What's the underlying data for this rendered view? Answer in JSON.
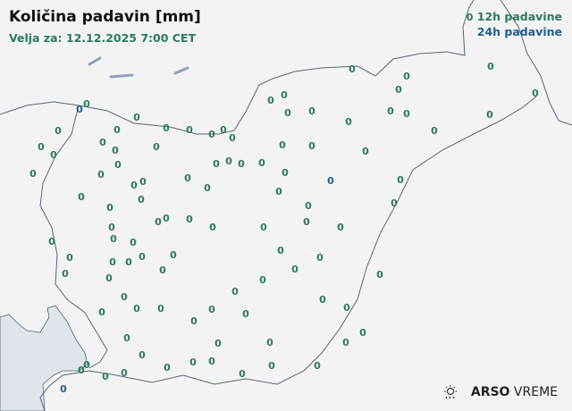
{
  "header": {
    "title": "Količina padavin [mm]",
    "valid_for": "Velja za: 12.12.2025 7:00 CET"
  },
  "legend": {
    "sample_value": "0",
    "items": [
      {
        "label": "12h padavine",
        "color": "#2b7a5a"
      },
      {
        "label": "24h padavine",
        "color": "#1f5f8f"
      }
    ]
  },
  "logo": {
    "brand": "ARSO",
    "product": "VREME",
    "icon": "sun-rain-icon"
  },
  "map": {
    "sea_color": "#dfe5ea",
    "land_color": "#f3f3f4",
    "border_color": "#556070"
  },
  "stations": {
    "type_12h": [
      "0",
      "0",
      "0",
      "0",
      "0",
      "0",
      "0",
      "0",
      "0",
      "0",
      "0",
      "0",
      "0",
      "0",
      "0",
      "0",
      "0",
      "0",
      "0",
      "0",
      "0",
      "0",
      "0",
      "0",
      "0",
      "0",
      "0",
      "0",
      "0",
      "0",
      "0",
      "0",
      "0",
      "0",
      "0",
      "0",
      "0",
      "0",
      "0",
      "0",
      "0",
      "0",
      "0",
      "0",
      "0",
      "0",
      "0",
      "0",
      "0",
      "0",
      "0",
      "0",
      "0",
      "0",
      "0",
      "0",
      "0",
      "0",
      "0",
      "0",
      "0",
      "0",
      "0",
      "0",
      "0",
      "0",
      "0",
      "0",
      "0",
      "0",
      "0",
      "0",
      "0",
      "0",
      "0",
      "0",
      "0",
      "0",
      "0",
      "0",
      "0",
      "0",
      "0",
      "0",
      "0",
      "0",
      "0",
      "0",
      "0",
      "0",
      "0",
      "0",
      "0",
      "0",
      "0",
      "0",
      "0",
      "0",
      "0",
      "0"
    ],
    "type_24h": [
      "0",
      "0",
      "0"
    ]
  }
}
